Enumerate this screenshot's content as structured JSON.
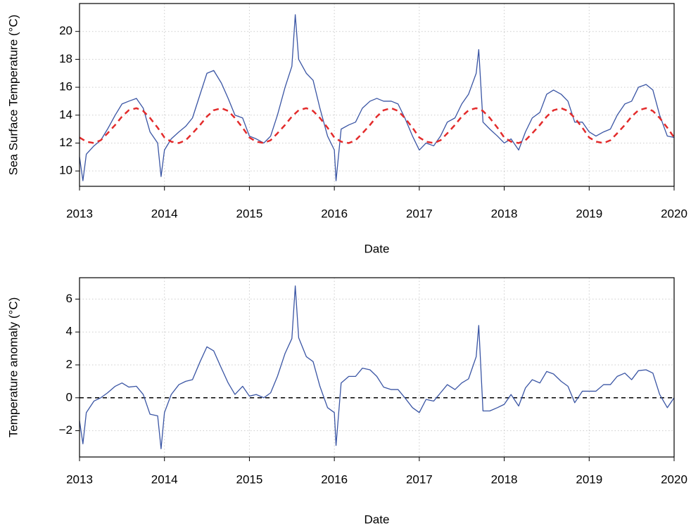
{
  "chart_data": [
    {
      "type": "line",
      "xlabel": "Date",
      "ylabel": "Sea Surface Temperature (°C)",
      "xlim": [
        2013,
        2020
      ],
      "xticks": [
        2013,
        2014,
        2015,
        2016,
        2017,
        2018,
        2019,
        2020
      ],
      "ylim": [
        8.9,
        22.0
      ],
      "yticks": [
        10,
        12,
        14,
        16,
        18,
        20
      ],
      "grid": true,
      "series": [
        {
          "color": "#3a55a4",
          "linestyle": "solid",
          "x": [
            2013.0,
            2013.04,
            2013.08,
            2013.17,
            2013.25,
            2013.33,
            2013.42,
            2013.5,
            2013.58,
            2013.67,
            2013.75,
            2013.83,
            2013.92,
            2013.96,
            2014.0,
            2014.08,
            2014.17,
            2014.25,
            2014.33,
            2014.42,
            2014.5,
            2014.58,
            2014.67,
            2014.75,
            2014.83,
            2014.92,
            2015.0,
            2015.08,
            2015.17,
            2015.25,
            2015.33,
            2015.42,
            2015.5,
            2015.54,
            2015.58,
            2015.67,
            2015.75,
            2015.83,
            2015.92,
            2016.0,
            2016.02,
            2016.08,
            2016.17,
            2016.25,
            2016.33,
            2016.42,
            2016.5,
            2016.58,
            2016.67,
            2016.75,
            2016.83,
            2016.92,
            2017.0,
            2017.08,
            2017.17,
            2017.25,
            2017.33,
            2017.42,
            2017.5,
            2017.58,
            2017.67,
            2017.7,
            2017.75,
            2017.83,
            2017.92,
            2018.0,
            2018.08,
            2018.17,
            2018.25,
            2018.33,
            2018.42,
            2018.5,
            2018.58,
            2018.67,
            2018.75,
            2018.83,
            2018.92,
            2019.0,
            2019.08,
            2019.17,
            2019.25,
            2019.33,
            2019.42,
            2019.5,
            2019.58,
            2019.67,
            2019.75,
            2019.83,
            2019.92,
            2020.0
          ],
          "values": [
            11.0,
            9.3,
            11.2,
            11.8,
            12.2,
            13.0,
            14.0,
            14.8,
            15.0,
            15.2,
            14.5,
            12.8,
            12.0,
            9.6,
            11.5,
            12.3,
            12.8,
            13.2,
            13.8,
            15.5,
            17.0,
            17.2,
            16.3,
            15.2,
            14.0,
            13.8,
            12.5,
            12.3,
            12.0,
            12.5,
            14.0,
            16.0,
            17.5,
            21.2,
            18.0,
            17.0,
            16.5,
            14.5,
            12.5,
            11.5,
            9.3,
            13.0,
            13.3,
            13.5,
            14.5,
            15.0,
            15.2,
            15.0,
            15.0,
            14.8,
            13.8,
            12.5,
            11.5,
            12.0,
            11.8,
            12.5,
            13.5,
            13.8,
            14.8,
            15.5,
            17.0,
            18.7,
            13.5,
            13.0,
            12.5,
            12.0,
            12.3,
            11.5,
            12.8,
            13.8,
            14.2,
            15.5,
            15.8,
            15.5,
            15.0,
            13.5,
            13.5,
            12.8,
            12.5,
            12.8,
            13.0,
            14.0,
            14.8,
            15.0,
            16.0,
            16.2,
            15.8,
            14.0,
            12.5,
            12.4
          ]
        },
        {
          "color": "#e32b2b",
          "linestyle": "dashed",
          "x": [
            2013.0,
            2013.08,
            2013.17,
            2013.25,
            2013.33,
            2013.42,
            2013.5,
            2013.58,
            2013.67,
            2013.75,
            2013.83,
            2013.92,
            2014.0,
            2014.08,
            2014.17,
            2014.25,
            2014.33,
            2014.42,
            2014.5,
            2014.58,
            2014.67,
            2014.75,
            2014.83,
            2014.92,
            2015.0,
            2015.08,
            2015.17,
            2015.25,
            2015.33,
            2015.42,
            2015.5,
            2015.58,
            2015.67,
            2015.75,
            2015.83,
            2015.92,
            2016.0,
            2016.08,
            2016.17,
            2016.25,
            2016.33,
            2016.42,
            2016.5,
            2016.58,
            2016.67,
            2016.75,
            2016.83,
            2016.92,
            2017.0,
            2017.08,
            2017.17,
            2017.25,
            2017.33,
            2017.42,
            2017.5,
            2017.58,
            2017.67,
            2017.75,
            2017.83,
            2017.92,
            2018.0,
            2018.08,
            2018.17,
            2018.25,
            2018.33,
            2018.42,
            2018.5,
            2018.58,
            2018.67,
            2018.75,
            2018.83,
            2018.92,
            2019.0,
            2019.08,
            2019.17,
            2019.25,
            2019.33,
            2019.42,
            2019.5,
            2019.58,
            2019.67,
            2019.75,
            2019.83,
            2019.92,
            2020.0
          ],
          "values": [
            12.4,
            12.1,
            12.0,
            12.2,
            12.7,
            13.3,
            13.9,
            14.35,
            14.5,
            14.3,
            13.8,
            13.1,
            12.4,
            12.1,
            12.0,
            12.2,
            12.7,
            13.3,
            13.9,
            14.35,
            14.5,
            14.3,
            13.8,
            13.1,
            12.4,
            12.1,
            12.0,
            12.2,
            12.7,
            13.3,
            13.9,
            14.35,
            14.5,
            14.3,
            13.8,
            13.1,
            12.4,
            12.1,
            12.0,
            12.2,
            12.7,
            13.3,
            13.9,
            14.35,
            14.5,
            14.3,
            13.8,
            13.1,
            12.4,
            12.1,
            12.0,
            12.2,
            12.7,
            13.3,
            13.9,
            14.35,
            14.5,
            14.3,
            13.8,
            13.1,
            12.4,
            12.1,
            12.0,
            12.2,
            12.7,
            13.3,
            13.9,
            14.35,
            14.5,
            14.3,
            13.8,
            13.1,
            12.4,
            12.1,
            12.0,
            12.2,
            12.7,
            13.3,
            13.9,
            14.35,
            14.5,
            14.3,
            13.8,
            13.1,
            12.4
          ]
        }
      ]
    },
    {
      "type": "line",
      "xlabel": "Date",
      "ylabel": "Temperature anomaly (°C)",
      "xlim": [
        2013,
        2020
      ],
      "xticks": [
        2013,
        2014,
        2015,
        2016,
        2017,
        2018,
        2019,
        2020
      ],
      "ylim": [
        -3.6,
        7.3
      ],
      "yticks": [
        {
          "value": -2,
          "label": "−2"
        },
        0,
        2,
        4,
        6
      ],
      "grid": true,
      "hline": 0,
      "series": [
        {
          "color": "#3a55a4",
          "linestyle": "solid",
          "x": [
            2013.0,
            2013.04,
            2013.08,
            2013.17,
            2013.25,
            2013.33,
            2013.42,
            2013.5,
            2013.58,
            2013.67,
            2013.75,
            2013.83,
            2013.92,
            2013.96,
            2014.0,
            2014.08,
            2014.17,
            2014.25,
            2014.33,
            2014.42,
            2014.5,
            2014.58,
            2014.67,
            2014.75,
            2014.83,
            2014.92,
            2015.0,
            2015.08,
            2015.17,
            2015.25,
            2015.33,
            2015.42,
            2015.5,
            2015.54,
            2015.58,
            2015.67,
            2015.75,
            2015.83,
            2015.92,
            2016.0,
            2016.02,
            2016.08,
            2016.17,
            2016.25,
            2016.33,
            2016.42,
            2016.5,
            2016.58,
            2016.67,
            2016.75,
            2016.83,
            2016.92,
            2017.0,
            2017.08,
            2017.17,
            2017.25,
            2017.33,
            2017.42,
            2017.5,
            2017.58,
            2017.67,
            2017.7,
            2017.75,
            2017.83,
            2017.92,
            2018.0,
            2018.08,
            2018.17,
            2018.25,
            2018.33,
            2018.42,
            2018.5,
            2018.58,
            2018.67,
            2018.75,
            2018.83,
            2018.92,
            2019.0,
            2019.08,
            2019.17,
            2019.25,
            2019.33,
            2019.42,
            2019.5,
            2019.58,
            2019.67,
            2019.75,
            2019.83,
            2019.92,
            2020.0
          ],
          "values": [
            -1.4,
            -2.8,
            -0.9,
            -0.2,
            0.0,
            0.3,
            0.7,
            0.9,
            0.65,
            0.7,
            0.2,
            -1.0,
            -1.1,
            -3.1,
            -0.9,
            0.2,
            0.8,
            1.0,
            1.1,
            2.2,
            3.1,
            2.85,
            1.8,
            0.9,
            0.2,
            0.7,
            0.1,
            0.2,
            0.0,
            0.3,
            1.3,
            2.7,
            3.6,
            6.8,
            3.65,
            2.5,
            2.2,
            0.7,
            -0.6,
            -0.9,
            -2.9,
            0.9,
            1.3,
            1.3,
            1.8,
            1.7,
            1.3,
            0.65,
            0.5,
            0.5,
            0.0,
            -0.6,
            -0.9,
            -0.1,
            -0.2,
            0.3,
            0.8,
            0.5,
            0.9,
            1.15,
            2.5,
            4.4,
            -0.8,
            -0.8,
            -0.6,
            -0.4,
            0.2,
            -0.5,
            0.6,
            1.1,
            0.9,
            1.6,
            1.45,
            1.0,
            0.7,
            -0.3,
            0.4,
            0.4,
            0.4,
            0.8,
            0.8,
            1.3,
            1.5,
            1.1,
            1.65,
            1.7,
            1.5,
            0.2,
            -0.6,
            0.0
          ]
        }
      ]
    }
  ]
}
